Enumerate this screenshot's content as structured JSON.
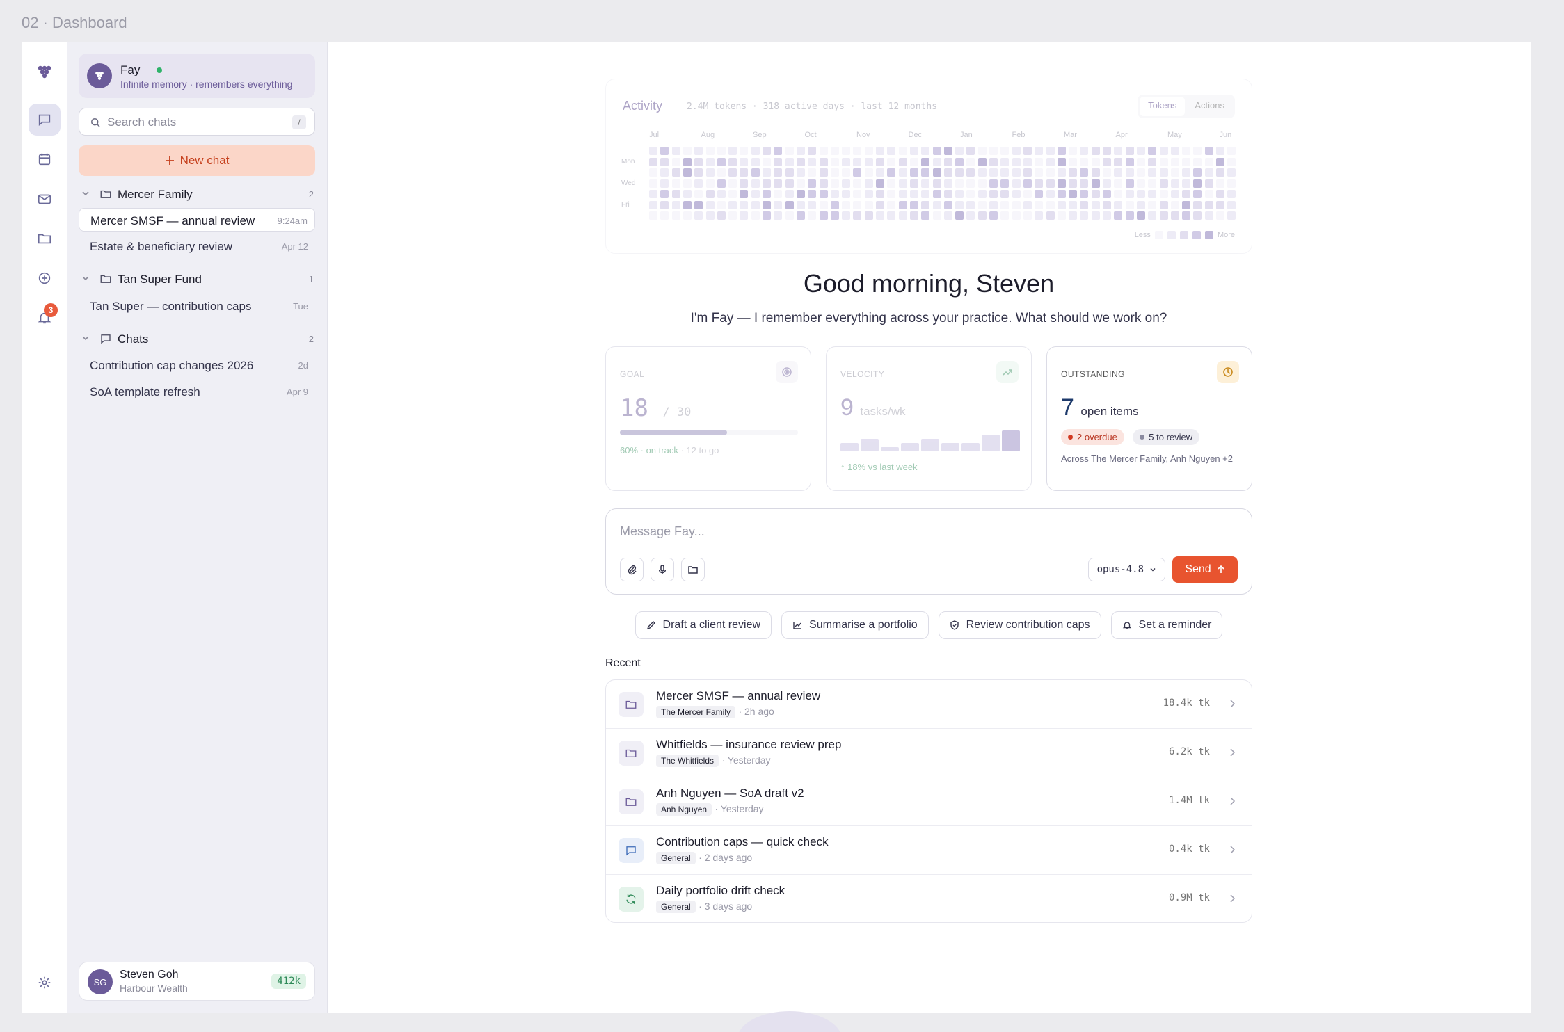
{
  "frame_title": "02 · Dashboard",
  "rail": {
    "items": [
      {
        "icon": "chat-icon",
        "active": true
      },
      {
        "icon": "calendar-icon"
      },
      {
        "icon": "mail-icon"
      },
      {
        "icon": "folder-icon"
      },
      {
        "icon": "plus-circle-icon"
      },
      {
        "icon": "bell-icon",
        "badge": "3"
      }
    ],
    "notifications_badge": "3"
  },
  "agent": {
    "name": "Fay",
    "subtitle": "Infinite memory · remembers everything",
    "status": "online"
  },
  "search": {
    "placeholder": "Search chats",
    "shortcut": "/"
  },
  "new_chat": {
    "label": "New chat"
  },
  "groups": [
    {
      "name": "Mercer Family",
      "count": "2",
      "icon": "folder-icon",
      "chats": [
        {
          "title": "Mercer SMSF — annual review",
          "time": "9:24am",
          "active": true
        },
        {
          "title": "Estate & beneficiary review",
          "time": "Apr 12"
        }
      ]
    },
    {
      "name": "Tan Super Fund",
      "count": "1",
      "icon": "folder-icon",
      "chats": [
        {
          "title": "Tan Super — contribution caps",
          "time": "Tue"
        }
      ]
    },
    {
      "name": "Chats",
      "count": "2",
      "icon": "chat-icon",
      "chats": [
        {
          "title": "Contribution cap changes 2026",
          "time": "2d"
        },
        {
          "title": "SoA template refresh",
          "time": "Apr 9"
        }
      ]
    }
  ],
  "user": {
    "initials": "SG",
    "name": "Steven Goh",
    "org": "Harbour Wealth",
    "tokens": "412k"
  },
  "activity": {
    "title": "Activity",
    "meta": "2.4M tokens · 318 active days · last 12 months",
    "toggle": [
      "Tokens",
      "Actions"
    ],
    "toggle_active": "Tokens",
    "months": [
      "Jul",
      "Aug",
      "Sep",
      "Oct",
      "Nov",
      "Dec",
      "Jan",
      "Feb",
      "Mar",
      "Apr",
      "May",
      "Jun"
    ],
    "days": [
      "Mon",
      "Wed",
      "Fri"
    ],
    "legend_less": "Less",
    "legend_more": "More",
    "colors": [
      "#f1eff8",
      "#e0dcef",
      "#cbc4e3",
      "#aca2d2",
      "#8d80bd"
    ]
  },
  "greeting": "Good morning, Steven",
  "subgreeting": "I'm Fay — I remember everything across your practice. What should we work on?",
  "stats": {
    "goal": {
      "label": "GOAL",
      "value": "18",
      "total": "/ 30",
      "progress": 0.6,
      "status": "60% · on track",
      "remaining": "· 12 to go"
    },
    "velocity": {
      "label": "VELOCITY",
      "value": "9",
      "unit": "tasks/wk",
      "trend": "18% vs last week",
      "weekly": [
        2,
        3,
        1,
        2,
        3,
        2,
        2,
        4,
        5
      ]
    },
    "outstanding": {
      "label": "OUTSTANDING",
      "value": "7",
      "unit": "open items",
      "overdue": "2 overdue",
      "review": "5 to review",
      "note": "Across The Mercer Family, Anh Nguyen +2"
    }
  },
  "composer": {
    "placeholder": "Message Fay...",
    "model": "opus-4.8",
    "send": "Send"
  },
  "suggestions": [
    {
      "label": "Draft a client review",
      "icon": "pencil-icon"
    },
    {
      "label": "Summarise a portfolio",
      "icon": "chart-icon"
    },
    {
      "label": "Review contribution caps",
      "icon": "shield-icon"
    },
    {
      "label": "Set a reminder",
      "icon": "bell-icon"
    }
  ],
  "recent_label": "Recent",
  "recent": [
    {
      "title": "Mercer SMSF — annual review",
      "tag": "The Mercer Family",
      "time": "· 2h ago",
      "tokens": "18.4k tk",
      "icon": "folder-icon",
      "icon_bg": "#f0eff6",
      "icon_color": "#6b5b99"
    },
    {
      "title": "Whitfields — insurance review prep",
      "tag": "The Whitfields",
      "time": "· Yesterday",
      "tokens": "6.2k tk",
      "icon": "folder-icon",
      "icon_bg": "#f0eff6",
      "icon_color": "#6b5b99"
    },
    {
      "title": "Anh Nguyen — SoA draft v2",
      "tag": "Anh Nguyen",
      "time": "· Yesterday",
      "tokens": "1.4M tk",
      "icon": "folder-icon",
      "icon_bg": "#f0eff6",
      "icon_color": "#6b5b99"
    },
    {
      "title": "Contribution caps — quick check",
      "tag": "General",
      "time": "· 2 days ago",
      "tokens": "0.4k tk",
      "icon": "chat-icon",
      "icon_bg": "#e8eef9",
      "icon_color": "#3d6bb8"
    },
    {
      "title": "Daily portfolio drift check",
      "tag": "General",
      "time": "· 3 days ago",
      "tokens": "0.9M tk",
      "icon": "refresh-icon",
      "icon_bg": "#e4f3ea",
      "icon_color": "#2e8a58"
    }
  ]
}
